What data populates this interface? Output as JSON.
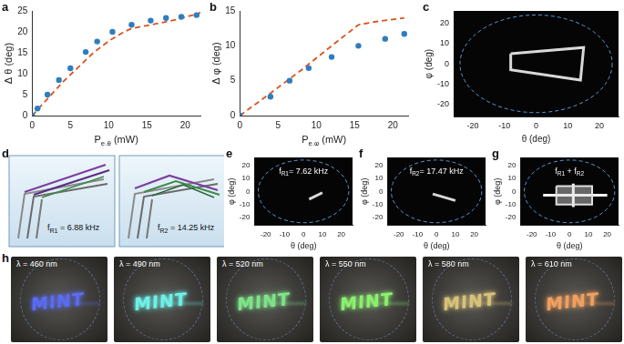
{
  "chart_data": [
    {
      "panel_label": "a",
      "type": "scatter",
      "x_label": [
        {
          "text": "P"
        },
        {
          "text": "e,θ",
          "sub": true
        },
        {
          "text": " (mW)"
        }
      ],
      "y_label": "Δ θ (deg)",
      "xlim": [
        0,
        22
      ],
      "xticks": [
        0,
        5,
        10,
        15,
        20
      ],
      "ylim": [
        0,
        25
      ],
      "yticks": [
        0,
        5,
        10,
        15,
        20,
        25
      ],
      "grid": false,
      "series": [
        {
          "type": "scatter",
          "marker": "circle",
          "color": "#2e7ebf",
          "x": [
            0,
            0.7,
            2,
            3.5,
            5,
            7,
            8.5,
            10.5,
            13,
            15.5,
            17.5,
            19.5,
            21.5
          ],
          "values": [
            0,
            1.7,
            5,
            8.5,
            11.3,
            15.2,
            17.7,
            20,
            21.7,
            22.7,
            23.3,
            23.6,
            24
          ]
        },
        {
          "type": "line",
          "line_style": "dashed",
          "color": "#d9541e",
          "x": [
            0,
            2,
            4,
            6,
            8,
            10,
            12,
            13,
            15,
            17,
            19,
            21,
            22
          ],
          "values": [
            0,
            4,
            8,
            11.5,
            15,
            17.8,
            20,
            20.8,
            21.5,
            22.2,
            23,
            24,
            24.6
          ]
        }
      ]
    },
    {
      "panel_label": "b",
      "type": "scatter",
      "x_label": [
        {
          "text": "P"
        },
        {
          "text": "e,φ",
          "sub": true
        },
        {
          "text": " (mW)"
        }
      ],
      "y_label": "Δ φ (deg)",
      "xlim": [
        0,
        22
      ],
      "xticks": [
        0,
        5,
        10,
        15,
        20
      ],
      "ylim": [
        0,
        15
      ],
      "yticks": [
        0,
        5,
        10,
        15
      ],
      "grid": false,
      "series": [
        {
          "type": "scatter",
          "marker": "circle",
          "color": "#2e7ebf",
          "x": [
            0,
            4,
            6.5,
            9,
            12,
            15.5,
            19,
            21.5
          ],
          "values": [
            0,
            2.7,
            5,
            6.8,
            8.4,
            10,
            11,
            11.7
          ]
        },
        {
          "type": "line",
          "line_style": "dashed",
          "color": "#d9541e",
          "x": [
            0,
            4,
            8,
            12,
            15.5,
            18,
            21.5
          ],
          "values": [
            0,
            3.2,
            6.5,
            10,
            13,
            13.5,
            14
          ]
        }
      ]
    },
    {
      "panel_label": "c",
      "type": "projection",
      "x_label": "θ (deg)",
      "y_label": "φ (deg)",
      "xlim": [
        -26,
        26
      ],
      "xticks": [
        -20,
        -10,
        0,
        10,
        20
      ],
      "ylim": [
        -26,
        26
      ],
      "yticks": [
        -20,
        -10,
        0,
        10,
        20
      ],
      "grid": false,
      "series": [
        {
          "type": "circle",
          "color": "#5b9bd5",
          "line_style": "dashed",
          "center": [
            0,
            0
          ],
          "radius": 24
        },
        {
          "type": "line",
          "color": "#d8d8d8",
          "x": [
            -8,
            15,
            14,
            -8,
            -8
          ],
          "values": [
            5,
            8,
            -8,
            -3,
            5
          ]
        }
      ]
    },
    {
      "panel_label": "e",
      "type": "projection",
      "x_label": "θ (deg)",
      "y_label": "φ (deg)",
      "xlim": [
        -26,
        26
      ],
      "xticks": [
        -20,
        -10,
        0,
        10,
        20
      ],
      "ylim": [
        -26,
        26
      ],
      "yticks": [
        -20,
        -10,
        0,
        10,
        20
      ],
      "grid": false,
      "annotation": [
        {
          "text": "f"
        },
        {
          "text": "R1",
          "sub": true
        },
        {
          "text": "= 7.62 kHz"
        }
      ],
      "series": [
        {
          "type": "circle",
          "color": "#5b9bd5",
          "line_style": "dashed",
          "center": [
            0,
            0
          ],
          "radius": 24
        },
        {
          "type": "line",
          "color": "#d8d8d8",
          "x": [
            3,
            10
          ],
          "values": [
            -6,
            -1
          ]
        }
      ]
    },
    {
      "panel_label": "f",
      "type": "projection",
      "x_label": "θ (deg)",
      "y_label": "φ (deg)",
      "xlim": [
        -26,
        26
      ],
      "xticks": [
        -20,
        -10,
        0,
        10,
        20
      ],
      "ylim": [
        -26,
        26
      ],
      "yticks": [
        -20,
        -10,
        0,
        10,
        20
      ],
      "grid": false,
      "annotation": [
        {
          "text": "f"
        },
        {
          "text": "R2",
          "sub": true
        },
        {
          "text": "= 17.47 kHz"
        }
      ],
      "series": [
        {
          "type": "circle",
          "color": "#5b9bd5",
          "line_style": "dashed",
          "center": [
            0,
            0
          ],
          "radius": 24
        },
        {
          "type": "line",
          "color": "#d8d8d8",
          "x": [
            -2,
            10
          ],
          "values": [
            -2,
            -7
          ]
        }
      ]
    },
    {
      "panel_label": "g",
      "type": "projection",
      "x_label": "θ (deg)",
      "y_label": "φ (deg)",
      "xlim": [
        -26,
        26
      ],
      "xticks": [
        -20,
        -10,
        0,
        10,
        20
      ],
      "ylim": [
        -26,
        26
      ],
      "yticks": [
        -20,
        -10,
        0,
        10,
        20
      ],
      "grid": false,
      "annotation": [
        {
          "text": "f"
        },
        {
          "text": "R1",
          "sub": true
        },
        {
          "text": " + f"
        },
        {
          "text": "R2",
          "sub": true
        }
      ],
      "series": [
        {
          "type": "circle",
          "color": "#5b9bd5",
          "line_style": "dashed",
          "center": [
            0,
            0
          ],
          "radius": 24
        },
        {
          "type": "area",
          "color": "#e0e0e0",
          "x": [
            -7,
            12,
            12,
            -7,
            -7
          ],
          "values": [
            4,
            4,
            -10,
            -10,
            4
          ]
        },
        {
          "type": "line",
          "color": "#f4f4f4",
          "x": [
            -14,
            20
          ],
          "values": [
            -3,
            -3
          ]
        },
        {
          "type": "line",
          "color": "#f4f4f4",
          "x": [
            2,
            2
          ],
          "values": [
            -12,
            6
          ]
        }
      ]
    }
  ],
  "diagram": {
    "panel_label": "d",
    "modes": [
      {
        "label": [
          {
            "text": "f"
          },
          {
            "text": "R1",
            "sub": true
          },
          {
            "text": " = 6.88 kHz"
          }
        ]
      },
      {
        "label": [
          {
            "text": "f"
          },
          {
            "text": "R2",
            "sub": true
          },
          {
            "text": " = 14.25 kHz"
          }
        ]
      }
    ]
  },
  "photos": {
    "panel_label": "h",
    "items": [
      {
        "label": "λ = 460 nm",
        "text": "MINT",
        "color": "#5a6cf0"
      },
      {
        "label": "λ = 490 nm",
        "text": "MINT",
        "color": "#6ff0e8"
      },
      {
        "label": "λ = 520 nm",
        "text": "MINT",
        "color": "#7fe38a"
      },
      {
        "label": "λ = 550 nm",
        "text": "MINT",
        "color": "#8cf070"
      },
      {
        "label": "λ = 580 nm",
        "text": "MINT",
        "color": "#d8c27a"
      },
      {
        "label": "λ = 610 nm",
        "text": "MINT",
        "color": "#f0a060"
      }
    ]
  }
}
